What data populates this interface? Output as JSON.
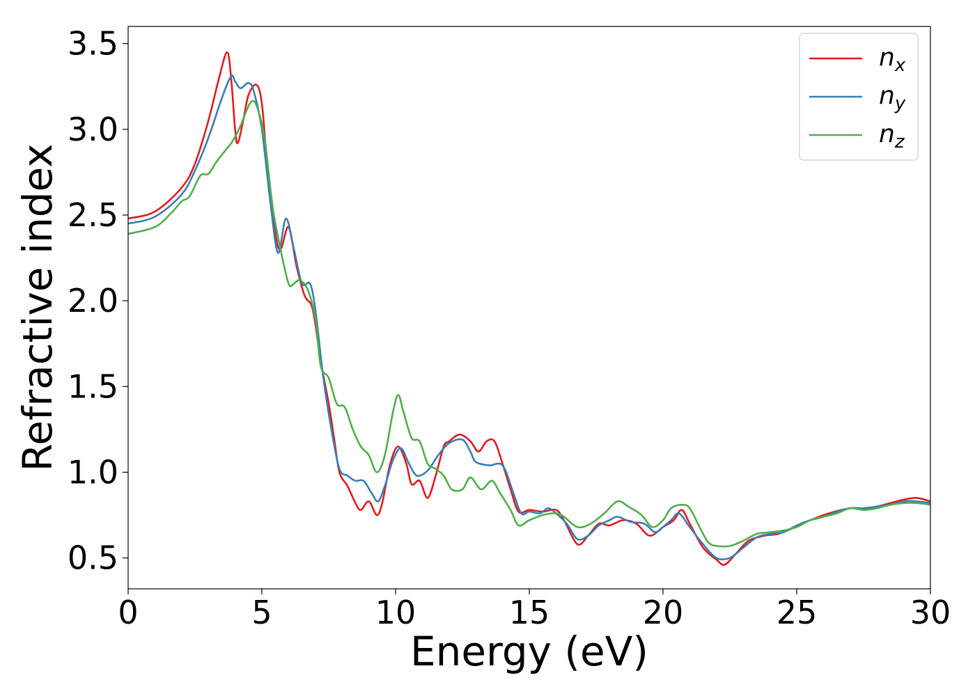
{
  "chart_data": {
    "type": "line",
    "xlabel": "Energy (eV)",
    "ylabel": "Refractive index",
    "xlim": [
      0,
      30
    ],
    "ylim": [
      0.32,
      3.6
    ],
    "xticks": [
      0,
      5,
      10,
      15,
      20,
      25,
      30
    ],
    "yticks": [
      0.5,
      1.0,
      1.5,
      2.0,
      2.5,
      3.0,
      3.5
    ],
    "xtick_labels": [
      "0",
      "5",
      "10",
      "15",
      "20",
      "25",
      "30"
    ],
    "ytick_labels": [
      "0.5",
      "1.0",
      "1.5",
      "2.0",
      "2.5",
      "3.0",
      "3.5"
    ],
    "grid": false,
    "legend": "top-right",
    "series": [
      {
        "name": "n",
        "sub": "x",
        "color": "#e41a1c",
        "points": [
          [
            0,
            2.48
          ],
          [
            1,
            2.52
          ],
          [
            2,
            2.66
          ],
          [
            2.5,
            2.8
          ],
          [
            3,
            3.05
          ],
          [
            3.4,
            3.3
          ],
          [
            3.7,
            3.45
          ],
          [
            3.85,
            3.3
          ],
          [
            4.0,
            3.0
          ],
          [
            4.1,
            2.92
          ],
          [
            4.3,
            3.05
          ],
          [
            4.5,
            3.2
          ],
          [
            4.8,
            3.26
          ],
          [
            5.0,
            3.15
          ],
          [
            5.2,
            2.8
          ],
          [
            5.5,
            2.4
          ],
          [
            5.7,
            2.3
          ],
          [
            6.0,
            2.43
          ],
          [
            6.3,
            2.2
          ],
          [
            6.6,
            2.03
          ],
          [
            6.9,
            1.95
          ],
          [
            7.2,
            1.65
          ],
          [
            7.5,
            1.4
          ],
          [
            7.7,
            1.2
          ],
          [
            7.9,
            1.0
          ],
          [
            8.2,
            0.92
          ],
          [
            8.5,
            0.82
          ],
          [
            8.7,
            0.78
          ],
          [
            9.0,
            0.83
          ],
          [
            9.3,
            0.75
          ],
          [
            9.5,
            0.82
          ],
          [
            9.8,
            1.05
          ],
          [
            10.1,
            1.15
          ],
          [
            10.4,
            1.05
          ],
          [
            10.6,
            0.93
          ],
          [
            10.9,
            0.95
          ],
          [
            11.2,
            0.85
          ],
          [
            11.5,
            0.98
          ],
          [
            11.8,
            1.15
          ],
          [
            12.0,
            1.18
          ],
          [
            12.4,
            1.22
          ],
          [
            12.8,
            1.18
          ],
          [
            13.1,
            1.12
          ],
          [
            13.4,
            1.18
          ],
          [
            13.7,
            1.18
          ],
          [
            14.0,
            1.05
          ],
          [
            14.3,
            0.9
          ],
          [
            14.6,
            0.77
          ],
          [
            15.0,
            0.78
          ],
          [
            15.5,
            0.77
          ],
          [
            16.0,
            0.78
          ],
          [
            16.3,
            0.72
          ],
          [
            16.8,
            0.58
          ],
          [
            17.2,
            0.63
          ],
          [
            17.6,
            0.7
          ],
          [
            18.0,
            0.69
          ],
          [
            18.5,
            0.72
          ],
          [
            19.0,
            0.7
          ],
          [
            19.5,
            0.63
          ],
          [
            20.0,
            0.68
          ],
          [
            20.4,
            0.72
          ],
          [
            20.7,
            0.78
          ],
          [
            21.0,
            0.7
          ],
          [
            21.5,
            0.56
          ],
          [
            22.0,
            0.49
          ],
          [
            22.3,
            0.46
          ],
          [
            22.7,
            0.52
          ],
          [
            23.2,
            0.6
          ],
          [
            23.8,
            0.63
          ],
          [
            24.3,
            0.64
          ],
          [
            24.8,
            0.67
          ],
          [
            25.5,
            0.72
          ],
          [
            26.2,
            0.76
          ],
          [
            27.0,
            0.79
          ],
          [
            27.5,
            0.79
          ],
          [
            28.0,
            0.8
          ],
          [
            28.5,
            0.82
          ],
          [
            29.0,
            0.84
          ],
          [
            29.5,
            0.85
          ],
          [
            30.0,
            0.83
          ]
        ]
      },
      {
        "name": "n",
        "sub": "y",
        "color": "#377eb8",
        "points": [
          [
            0,
            2.45
          ],
          [
            1,
            2.49
          ],
          [
            2,
            2.62
          ],
          [
            2.5,
            2.76
          ],
          [
            3,
            2.95
          ],
          [
            3.5,
            3.18
          ],
          [
            3.85,
            3.31
          ],
          [
            4.0,
            3.28
          ],
          [
            4.2,
            3.24
          ],
          [
            4.5,
            3.27
          ],
          [
            4.7,
            3.22
          ],
          [
            5.0,
            3.0
          ],
          [
            5.3,
            2.6
          ],
          [
            5.6,
            2.28
          ],
          [
            5.9,
            2.48
          ],
          [
            6.2,
            2.3
          ],
          [
            6.5,
            2.1
          ],
          [
            6.8,
            2.1
          ],
          [
            7.0,
            1.95
          ],
          [
            7.3,
            1.55
          ],
          [
            7.6,
            1.25
          ],
          [
            7.9,
            1.02
          ],
          [
            8.2,
            0.98
          ],
          [
            8.5,
            0.95
          ],
          [
            8.8,
            0.95
          ],
          [
            9.1,
            0.88
          ],
          [
            9.35,
            0.83
          ],
          [
            9.6,
            0.92
          ],
          [
            9.9,
            1.07
          ],
          [
            10.2,
            1.14
          ],
          [
            10.5,
            1.05
          ],
          [
            10.8,
            0.98
          ],
          [
            11.2,
            1.01
          ],
          [
            11.6,
            1.1
          ],
          [
            12.0,
            1.17
          ],
          [
            12.5,
            1.19
          ],
          [
            12.8,
            1.12
          ],
          [
            13.0,
            1.06
          ],
          [
            13.5,
            1.04
          ],
          [
            14.0,
            1.04
          ],
          [
            14.4,
            0.88
          ],
          [
            14.7,
            0.76
          ],
          [
            15.0,
            0.77
          ],
          [
            15.4,
            0.76
          ],
          [
            15.7,
            0.79
          ],
          [
            16.0,
            0.76
          ],
          [
            16.4,
            0.7
          ],
          [
            16.8,
            0.61
          ],
          [
            17.2,
            0.63
          ],
          [
            17.6,
            0.69
          ],
          [
            18.0,
            0.72
          ],
          [
            18.3,
            0.74
          ],
          [
            18.8,
            0.71
          ],
          [
            19.3,
            0.7
          ],
          [
            19.7,
            0.65
          ],
          [
            20.0,
            0.68
          ],
          [
            20.3,
            0.72
          ],
          [
            20.6,
            0.76
          ],
          [
            21.0,
            0.68
          ],
          [
            21.5,
            0.58
          ],
          [
            22.0,
            0.5
          ],
          [
            22.5,
            0.5
          ],
          [
            23.0,
            0.56
          ],
          [
            23.5,
            0.62
          ],
          [
            24.0,
            0.64
          ],
          [
            24.5,
            0.65
          ],
          [
            25.0,
            0.69
          ],
          [
            25.5,
            0.72
          ],
          [
            26.0,
            0.74
          ],
          [
            26.5,
            0.77
          ],
          [
            27.0,
            0.79
          ],
          [
            27.5,
            0.79
          ],
          [
            28.0,
            0.8
          ],
          [
            28.5,
            0.81
          ],
          [
            29.0,
            0.83
          ],
          [
            29.5,
            0.83
          ],
          [
            30.0,
            0.82
          ]
        ]
      },
      {
        "name": "n",
        "sub": "z",
        "color": "#4daf4a",
        "points": [
          [
            0,
            2.39
          ],
          [
            1,
            2.43
          ],
          [
            1.6,
            2.51
          ],
          [
            2,
            2.58
          ],
          [
            2.3,
            2.61
          ],
          [
            2.7,
            2.73
          ],
          [
            3.0,
            2.74
          ],
          [
            3.3,
            2.81
          ],
          [
            3.6,
            2.87
          ],
          [
            3.9,
            2.93
          ],
          [
            4.2,
            3.02
          ],
          [
            4.4,
            3.1
          ],
          [
            4.6,
            3.16
          ],
          [
            4.8,
            3.14
          ],
          [
            5.1,
            2.95
          ],
          [
            5.4,
            2.55
          ],
          [
            5.7,
            2.3
          ],
          [
            6.0,
            2.1
          ],
          [
            6.2,
            2.1
          ],
          [
            6.4,
            2.12
          ],
          [
            6.7,
            2.07
          ],
          [
            7.0,
            1.9
          ],
          [
            7.2,
            1.62
          ],
          [
            7.5,
            1.55
          ],
          [
            7.8,
            1.4
          ],
          [
            8.1,
            1.38
          ],
          [
            8.4,
            1.25
          ],
          [
            8.7,
            1.15
          ],
          [
            9.0,
            1.1
          ],
          [
            9.3,
            1.0
          ],
          [
            9.6,
            1.1
          ],
          [
            9.9,
            1.35
          ],
          [
            10.1,
            1.45
          ],
          [
            10.3,
            1.35
          ],
          [
            10.6,
            1.2
          ],
          [
            10.9,
            1.18
          ],
          [
            11.2,
            1.05
          ],
          [
            11.5,
            1.02
          ],
          [
            11.8,
            0.98
          ],
          [
            12.1,
            0.9
          ],
          [
            12.5,
            0.9
          ],
          [
            12.8,
            0.97
          ],
          [
            13.2,
            0.9
          ],
          [
            13.6,
            0.95
          ],
          [
            13.9,
            0.88
          ],
          [
            14.3,
            0.78
          ],
          [
            14.6,
            0.69
          ],
          [
            15.0,
            0.72
          ],
          [
            15.5,
            0.75
          ],
          [
            16.0,
            0.76
          ],
          [
            16.3,
            0.74
          ],
          [
            16.8,
            0.68
          ],
          [
            17.3,
            0.7
          ],
          [
            17.8,
            0.76
          ],
          [
            18.3,
            0.83
          ],
          [
            18.7,
            0.8
          ],
          [
            19.2,
            0.75
          ],
          [
            19.6,
            0.68
          ],
          [
            20.0,
            0.72
          ],
          [
            20.3,
            0.79
          ],
          [
            20.7,
            0.81
          ],
          [
            21.0,
            0.79
          ],
          [
            21.4,
            0.67
          ],
          [
            21.7,
            0.59
          ],
          [
            22.0,
            0.57
          ],
          [
            22.5,
            0.57
          ],
          [
            23.0,
            0.6
          ],
          [
            23.5,
            0.64
          ],
          [
            24.0,
            0.65
          ],
          [
            24.5,
            0.66
          ],
          [
            25.0,
            0.68
          ],
          [
            25.5,
            0.72
          ],
          [
            26.0,
            0.74
          ],
          [
            26.5,
            0.76
          ],
          [
            27.0,
            0.79
          ],
          [
            27.5,
            0.78
          ],
          [
            28.0,
            0.79
          ],
          [
            28.5,
            0.81
          ],
          [
            29.0,
            0.82
          ],
          [
            29.5,
            0.82
          ],
          [
            30.0,
            0.81
          ]
        ]
      }
    ]
  }
}
